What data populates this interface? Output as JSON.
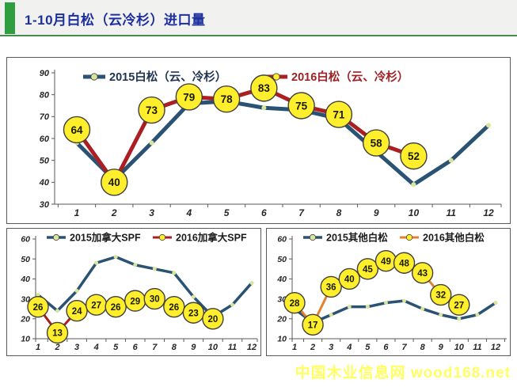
{
  "page": {
    "title": "1-10月白松（云冷杉）进口量",
    "watermark": "中国木业信息网 wood168.net"
  },
  "colors": {
    "accent_green": "#2f9e41",
    "header_rule_green": "#478a4d",
    "title_blue": "#1d2f9e",
    "series_blue_2015": "#2a5273",
    "series_red_2016": "#ab1f23",
    "series_orange_2016": "#e2822e",
    "circle_fill": "#ffee2b",
    "circle_stroke": "#3f3f3f",
    "pale_dot": "#d9e49c",
    "axis_color": "#595959",
    "tick_label": "#262626",
    "watermark_yellow": "#ffff63"
  },
  "chart_data": [
    {
      "type": "line",
      "title": "",
      "x": [
        1,
        2,
        3,
        4,
        5,
        6,
        7,
        8,
        9,
        10,
        11,
        12
      ],
      "ylim": [
        30,
        90
      ],
      "yticks": [
        30,
        40,
        50,
        60,
        70,
        80,
        90
      ],
      "grid": false,
      "legend_position": "top",
      "series": [
        {
          "name": "2015白松（云、冷杉）",
          "color": "#2a5273",
          "label_color": "#1f3350",
          "marker": "small-dot",
          "values": [
            58,
            41,
            58,
            76,
            77,
            74,
            73,
            69,
            54,
            39,
            50,
            66
          ]
        },
        {
          "name": "2016白松（云、冷杉）",
          "color": "#ab1f23",
          "label_color": "#a02024",
          "marker": "labeled-circle",
          "values": [
            64,
            40,
            73,
            79,
            78,
            83,
            75,
            71,
            58,
            52,
            null,
            null
          ]
        }
      ]
    },
    {
      "type": "line",
      "title": "",
      "x": [
        1,
        2,
        3,
        4,
        5,
        6,
        7,
        8,
        9,
        10,
        11,
        12
      ],
      "ylim": [
        10,
        60
      ],
      "yticks": [
        10,
        20,
        30,
        40,
        50,
        60
      ],
      "grid": false,
      "legend_position": "top",
      "series": [
        {
          "name": "2015加拿大SPF",
          "color": "#2a5273",
          "label_color": "#1a1a1a",
          "marker": "small-dot",
          "values": [
            32,
            24,
            34,
            48,
            51,
            47,
            45,
            43,
            31,
            21,
            27,
            38
          ]
        },
        {
          "name": "2016加拿大SPF",
          "color": "#ab1f23",
          "label_color": "#1a1a1a",
          "marker": "labeled-circle",
          "values": [
            26,
            13,
            24,
            27,
            26,
            29,
            30,
            26,
            23,
            20,
            null,
            null
          ]
        }
      ]
    },
    {
      "type": "line",
      "title": "",
      "x": [
        1,
        2,
        3,
        4,
        5,
        6,
        7,
        8,
        9,
        10,
        11,
        12
      ],
      "ylim": [
        10,
        60
      ],
      "yticks": [
        10,
        20,
        30,
        40,
        50,
        60
      ],
      "grid": false,
      "legend_position": "top",
      "series": [
        {
          "name": "2015其他白松",
          "color": "#2a5273",
          "label_color": "#1a1a1a",
          "marker": "small-dot",
          "values": [
            25,
            18,
            22,
            26,
            26,
            28,
            29,
            25,
            22,
            20,
            22,
            28
          ]
        },
        {
          "name": "2016其他白松",
          "color": "#e2822e",
          "label_color": "#1a1a1a",
          "marker": "labeled-circle",
          "values": [
            28,
            17,
            36,
            40,
            45,
            49,
            48,
            43,
            32,
            27,
            null,
            null
          ]
        }
      ]
    }
  ]
}
